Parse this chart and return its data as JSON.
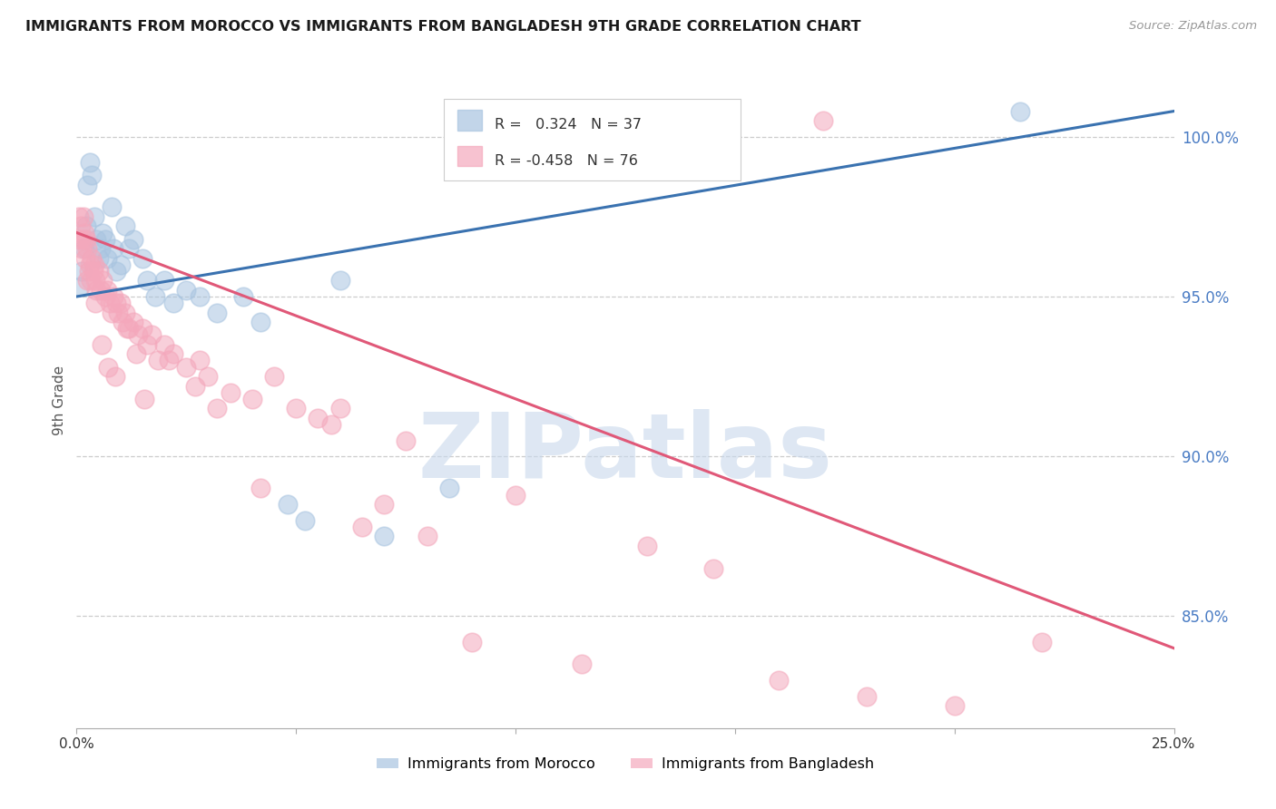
{
  "title": "IMMIGRANTS FROM MOROCCO VS IMMIGRANTS FROM BANGLADESH 9TH GRADE CORRELATION CHART",
  "source": "Source: ZipAtlas.com",
  "ylabel": "9th Grade",
  "ylabel_right_ticks": [
    85.0,
    90.0,
    95.0,
    100.0
  ],
  "xlim": [
    0.0,
    25.0
  ],
  "ylim": [
    81.5,
    102.0
  ],
  "morocco_color": "#A8C4E0",
  "bangladesh_color": "#F4A8BC",
  "morocco_line_color": "#3A72B0",
  "bangladesh_line_color": "#E05878",
  "morocco_R": 0.324,
  "morocco_N": 37,
  "bangladesh_R": -0.458,
  "bangladesh_N": 76,
  "watermark": "ZIPatlas",
  "watermark_color": "#C8D8EC",
  "morocco_x": [
    0.08,
    0.12,
    0.18,
    0.22,
    0.25,
    0.3,
    0.35,
    0.4,
    0.45,
    0.5,
    0.55,
    0.6,
    0.65,
    0.7,
    0.8,
    0.85,
    0.9,
    1.0,
    1.1,
    1.2,
    1.3,
    1.5,
    1.6,
    1.8,
    2.0,
    2.2,
    2.5,
    2.8,
    3.2,
    3.8,
    4.2,
    4.8,
    5.2,
    6.0,
    7.0,
    8.5,
    21.5
  ],
  "morocco_y": [
    95.3,
    95.8,
    96.5,
    97.2,
    98.5,
    99.2,
    98.8,
    97.5,
    96.8,
    96.2,
    96.5,
    97.0,
    96.8,
    96.2,
    97.8,
    96.5,
    95.8,
    96.0,
    97.2,
    96.5,
    96.8,
    96.2,
    95.5,
    95.0,
    95.5,
    94.8,
    95.2,
    95.0,
    94.5,
    95.0,
    94.2,
    88.5,
    88.0,
    95.5,
    87.5,
    89.0,
    100.8
  ],
  "bangladesh_x": [
    0.05,
    0.08,
    0.1,
    0.12,
    0.15,
    0.18,
    0.2,
    0.22,
    0.25,
    0.28,
    0.3,
    0.33,
    0.35,
    0.38,
    0.4,
    0.43,
    0.45,
    0.5,
    0.55,
    0.6,
    0.65,
    0.7,
    0.75,
    0.8,
    0.85,
    0.9,
    0.95,
    1.0,
    1.05,
    1.1,
    1.2,
    1.3,
    1.4,
    1.5,
    1.6,
    1.7,
    1.85,
    2.0,
    2.2,
    2.5,
    2.8,
    3.0,
    3.5,
    4.0,
    4.5,
    5.0,
    5.5,
    6.0,
    6.5,
    7.0,
    7.5,
    8.0,
    9.0,
    10.0,
    11.5,
    13.0,
    14.5,
    16.0,
    18.0,
    20.0,
    22.0,
    0.15,
    0.25,
    0.42,
    0.58,
    0.72,
    0.88,
    1.15,
    1.35,
    1.55,
    2.1,
    2.7,
    3.2,
    4.2,
    5.8,
    17.0
  ],
  "bangladesh_y": [
    97.5,
    96.8,
    97.2,
    96.5,
    96.8,
    97.0,
    96.2,
    96.8,
    96.5,
    95.8,
    96.0,
    95.5,
    96.2,
    95.8,
    96.0,
    95.5,
    95.2,
    95.8,
    95.2,
    95.5,
    95.0,
    95.2,
    94.8,
    94.5,
    95.0,
    94.8,
    94.5,
    94.8,
    94.2,
    94.5,
    94.0,
    94.2,
    93.8,
    94.0,
    93.5,
    93.8,
    93.0,
    93.5,
    93.2,
    92.8,
    93.0,
    92.5,
    92.0,
    91.8,
    92.5,
    91.5,
    91.2,
    91.5,
    87.8,
    88.5,
    90.5,
    87.5,
    84.2,
    88.8,
    83.5,
    87.2,
    86.5,
    83.0,
    82.5,
    82.2,
    84.2,
    97.5,
    95.5,
    94.8,
    93.5,
    92.8,
    92.5,
    94.0,
    93.2,
    91.8,
    93.0,
    92.2,
    91.5,
    89.0,
    91.0,
    100.5
  ]
}
